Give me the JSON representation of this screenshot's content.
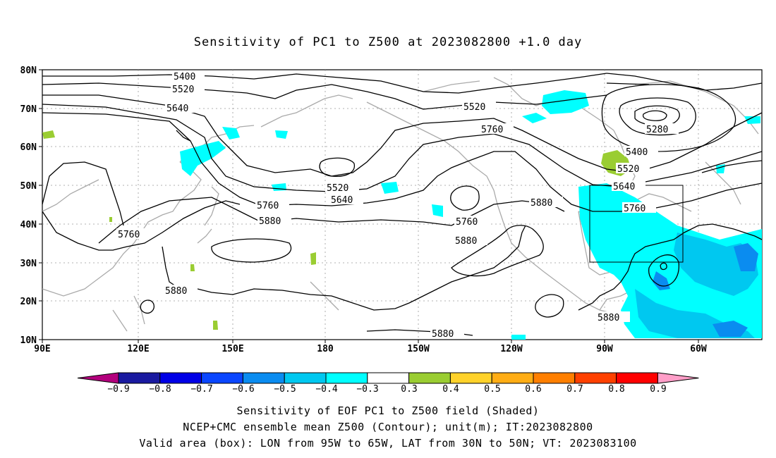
{
  "title": "Sensitivity of PC1 to Z500 at 2023082800 +1.0 day",
  "map": {
    "lat_ticks": [
      "80N",
      "70N",
      "60N",
      "50N",
      "40N",
      "30N",
      "20N",
      "10N"
    ],
    "lon_ticks": [
      "90E",
      "120E",
      "150E",
      "180",
      "150W",
      "120W",
      "90W",
      "60W"
    ],
    "contour_labels": [
      "5400",
      "5520",
      "5640",
      "5280",
      "5400",
      "5520",
      "5640",
      "5760",
      "5880",
      "5520",
      "5760",
      "5880",
      "5640",
      "5520",
      "5760",
      "5760",
      "5880",
      "5760",
      "5880",
      "5880",
      "5880",
      "5880"
    ],
    "box": {
      "lon_from": "95W",
      "lon_to": "65W",
      "lat_from": "30N",
      "lat_to": "50N"
    }
  },
  "colorbar": {
    "labels": [
      "−0.9",
      "−0.8",
      "−0.7",
      "−0.6",
      "−0.5",
      "−0.4",
      "−0.3",
      "0.3",
      "0.4",
      "0.5",
      "0.6",
      "0.7",
      "0.8",
      "0.9"
    ],
    "colors": [
      "#b3007d",
      "#1a1aa0",
      "#0000e6",
      "#0a46ff",
      "#0a8cf0",
      "#00c8f0",
      "#00ffff",
      "#ffffff",
      "#9acd32",
      "#ffd22a",
      "#ffad14",
      "#ff7f00",
      "#ff4000",
      "#ff0000",
      "#ff9ec8"
    ]
  },
  "captions": [
    "Sensitivity of EOF PC1 to Z500 field (Shaded)",
    "NCEP+CMC ensemble mean Z500 (Contour); unit(m); IT:2023082800",
    "Valid area (box): LON from 95W to 65W, LAT from 30N to 50N; VT: 2023083100"
  ]
}
